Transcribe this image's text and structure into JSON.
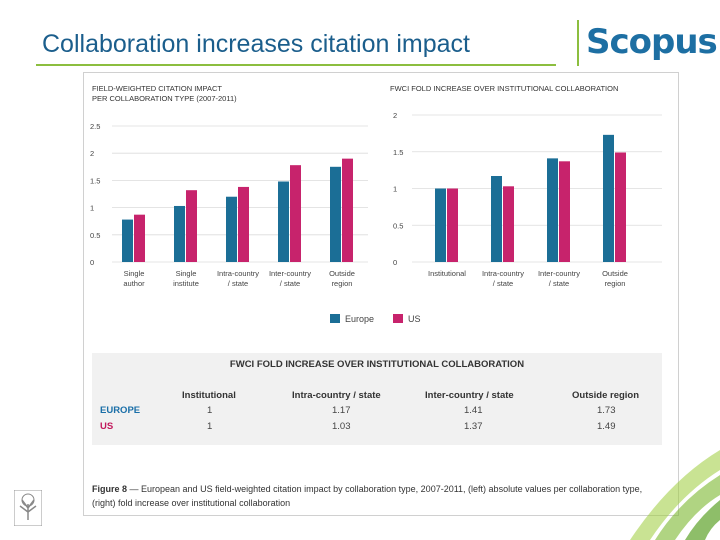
{
  "slide": {
    "title": "Collaboration increases citation impact",
    "logo_text": "Scopus",
    "accent_color": "#8cbe3f",
    "brand_color": "#1d6fa3"
  },
  "colors": {
    "europe": "#1b6e96",
    "us": "#c7236c"
  },
  "chart_data": [
    {
      "type": "bar",
      "title_lines": [
        "FIELD-WEIGHTED CITATION IMPACT",
        "PER COLLABORATION TYPE (2007-2011)"
      ],
      "categories": [
        [
          "Single",
          "author"
        ],
        [
          "Single",
          "institute"
        ],
        [
          "Intra-country",
          "/ state"
        ],
        [
          "Inter-country",
          "/ state"
        ],
        [
          "Outside",
          "region"
        ]
      ],
      "series": [
        {
          "name": "Europe",
          "values": [
            0.78,
            1.03,
            1.2,
            1.48,
            1.75
          ]
        },
        {
          "name": "US",
          "values": [
            0.87,
            1.32,
            1.38,
            1.78,
            1.9
          ]
        }
      ],
      "yticks": [
        "0",
        "0.5",
        "1",
        "1.5",
        "2",
        "2.5"
      ],
      "ylim": [
        0,
        2.5
      ]
    },
    {
      "type": "bar",
      "title_lines": [
        "FWCI FOLD INCREASE OVER INSTITUTIONAL COLLABORATION"
      ],
      "categories": [
        [
          "Institutional"
        ],
        [
          "Intra-country",
          "/ state"
        ],
        [
          "Inter-country",
          "/ state"
        ],
        [
          "Outside",
          "region"
        ]
      ],
      "series": [
        {
          "name": "Europe",
          "values": [
            1,
            1.17,
            1.41,
            1.73
          ]
        },
        {
          "name": "US",
          "values": [
            1,
            1.03,
            1.37,
            1.49
          ]
        }
      ],
      "yticks": [
        "0",
        "0.5",
        "1",
        "1.5",
        "2"
      ],
      "ylim": [
        0,
        2
      ]
    }
  ],
  "legend": {
    "europe": "Europe",
    "us": "US"
  },
  "table": {
    "title": "FWCI FOLD INCREASE OVER INSTITUTIONAL COLLABORATION",
    "headers": [
      "Institutional",
      "Intra-country / state",
      "Inter-country / state",
      "Outside region"
    ],
    "rows": [
      {
        "label": "EUROPE",
        "values": [
          "1",
          "1.17",
          "1.41",
          "1.73"
        ]
      },
      {
        "label": "US",
        "values": [
          "1",
          "1.03",
          "1.37",
          "1.49"
        ]
      }
    ]
  },
  "caption": {
    "figure": "Figure 8",
    "text": " — European and US field-weighted citation impact by collaboration type, 2007-2011, (left) absolute values per collaboration type, (right) fold increase over institutional collaboration"
  }
}
